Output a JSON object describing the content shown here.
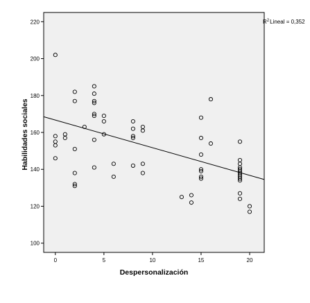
{
  "chart_data": {
    "type": "scatter",
    "title": "",
    "xlabel": "Despersonalización",
    "ylabel": "Habilidades sociales",
    "xlim": [
      -1.2,
      21.5
    ],
    "ylim": [
      95,
      225
    ],
    "xticks": [
      0,
      5,
      10,
      15,
      20
    ],
    "yticks": [
      100,
      120,
      140,
      160,
      180,
      200,
      220
    ],
    "grid": false,
    "plot_background": "#f0f0f0",
    "marker_style": "open-circle",
    "annotation": {
      "prefix": "R",
      "superscript": "2",
      "label": "Lineal = 0,352"
    },
    "fit_line": {
      "x": [
        -1.2,
        21.5
      ],
      "y": [
        168.5,
        134.5
      ]
    },
    "points": [
      {
        "x": 0,
        "y": 202
      },
      {
        "x": 0,
        "y": 158
      },
      {
        "x": 0,
        "y": 155
      },
      {
        "x": 0,
        "y": 153
      },
      {
        "x": 0,
        "y": 146
      },
      {
        "x": 1,
        "y": 159
      },
      {
        "x": 1,
        "y": 157
      },
      {
        "x": 2,
        "y": 182
      },
      {
        "x": 2,
        "y": 177
      },
      {
        "x": 2,
        "y": 151
      },
      {
        "x": 2,
        "y": 138
      },
      {
        "x": 2,
        "y": 132
      },
      {
        "x": 2,
        "y": 131
      },
      {
        "x": 3,
        "y": 163
      },
      {
        "x": 4,
        "y": 185
      },
      {
        "x": 4,
        "y": 181
      },
      {
        "x": 4,
        "y": 177
      },
      {
        "x": 4,
        "y": 176
      },
      {
        "x": 4,
        "y": 170
      },
      {
        "x": 4,
        "y": 169
      },
      {
        "x": 4,
        "y": 156
      },
      {
        "x": 4,
        "y": 141
      },
      {
        "x": 5,
        "y": 169
      },
      {
        "x": 5,
        "y": 166
      },
      {
        "x": 5,
        "y": 159
      },
      {
        "x": 6,
        "y": 143
      },
      {
        "x": 6,
        "y": 136
      },
      {
        "x": 8,
        "y": 166
      },
      {
        "x": 8,
        "y": 162
      },
      {
        "x": 8,
        "y": 158
      },
      {
        "x": 8,
        "y": 157
      },
      {
        "x": 8,
        "y": 142
      },
      {
        "x": 9,
        "y": 163
      },
      {
        "x": 9,
        "y": 161
      },
      {
        "x": 9,
        "y": 143
      },
      {
        "x": 9,
        "y": 138
      },
      {
        "x": 13,
        "y": 125
      },
      {
        "x": 14,
        "y": 126
      },
      {
        "x": 14,
        "y": 122
      },
      {
        "x": 15,
        "y": 168
      },
      {
        "x": 15,
        "y": 157
      },
      {
        "x": 15,
        "y": 148
      },
      {
        "x": 15,
        "y": 140
      },
      {
        "x": 15,
        "y": 139
      },
      {
        "x": 15,
        "y": 136
      },
      {
        "x": 15,
        "y": 135
      },
      {
        "x": 16,
        "y": 178
      },
      {
        "x": 16,
        "y": 154
      },
      {
        "x": 19,
        "y": 155
      },
      {
        "x": 19,
        "y": 145
      },
      {
        "x": 19,
        "y": 143
      },
      {
        "x": 19,
        "y": 141
      },
      {
        "x": 19,
        "y": 140
      },
      {
        "x": 19,
        "y": 139
      },
      {
        "x": 19,
        "y": 138
      },
      {
        "x": 19,
        "y": 137
      },
      {
        "x": 19,
        "y": 136
      },
      {
        "x": 19,
        "y": 135
      },
      {
        "x": 19,
        "y": 134
      },
      {
        "x": 19,
        "y": 127
      },
      {
        "x": 19,
        "y": 124
      },
      {
        "x": 20,
        "y": 120
      },
      {
        "x": 20,
        "y": 117
      }
    ]
  }
}
